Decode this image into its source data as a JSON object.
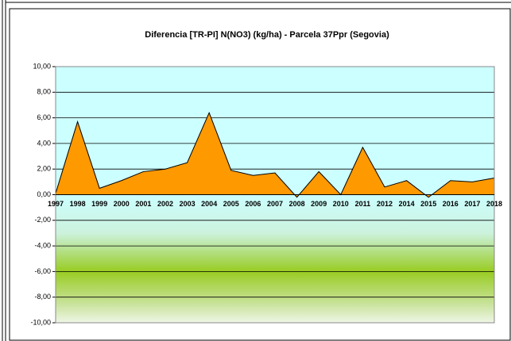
{
  "chart_data": {
    "type": "area",
    "title": "Diferencia [TR-PI] N(NO3) (kg/ha) - Parcela 37Ppr (Segovia)",
    "categories": [
      "1997",
      "1998",
      "1999",
      "2000",
      "2001",
      "2002",
      "2003",
      "2004",
      "2005",
      "2006",
      "2007",
      "2008",
      "2009",
      "2010",
      "2011",
      "2012",
      "2014",
      "2015",
      "2016",
      "2017",
      "2018"
    ],
    "values": [
      0.1,
      5.7,
      0.5,
      1.1,
      1.8,
      2.0,
      2.5,
      6.4,
      1.9,
      1.5,
      1.7,
      -0.2,
      1.8,
      0.0,
      3.7,
      0.6,
      1.1,
      -0.2,
      1.1,
      1.0,
      1.3
    ],
    "color": "#ff9900",
    "ylim": [
      -10,
      10
    ],
    "yticks": [
      {
        "value": -10,
        "label": "-10,00"
      },
      {
        "value": -8,
        "label": "-8,00"
      },
      {
        "value": -6,
        "label": "-6,00"
      },
      {
        "value": -4,
        "label": "-4,00"
      },
      {
        "value": -2,
        "label": "-2,00"
      },
      {
        "value": 0,
        "label": "0,00"
      },
      {
        "value": 2,
        "label": "2,00"
      },
      {
        "value": 4,
        "label": "4,00"
      },
      {
        "value": 6,
        "label": "6,00"
      },
      {
        "value": 8,
        "label": "8,00"
      },
      {
        "value": 10,
        "label": "10,00"
      }
    ],
    "grid": true
  }
}
